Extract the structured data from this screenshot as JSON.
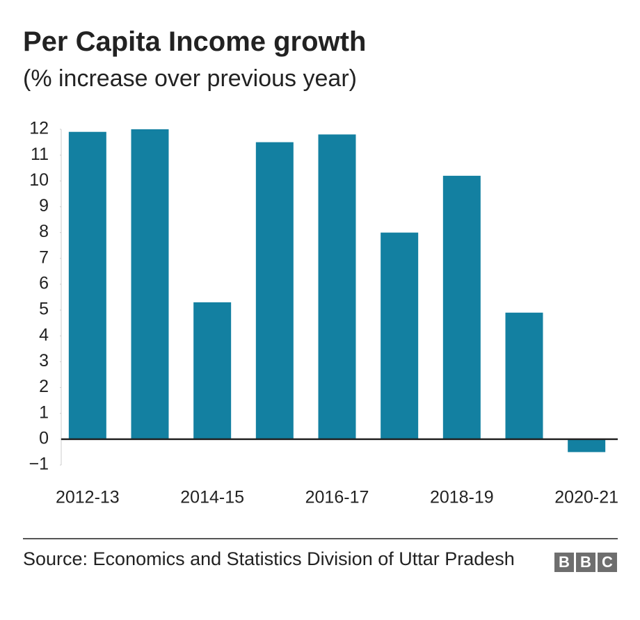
{
  "chart_data": {
    "type": "bar",
    "title": "Per Capita Income growth",
    "subtitle": "(% increase over previous year)",
    "categories": [
      "2012-13",
      null,
      "2014-15",
      null,
      "2016-17",
      null,
      "2018-19",
      null,
      "2020-21"
    ],
    "values": [
      11.9,
      12.0,
      5.3,
      11.5,
      11.8,
      8.0,
      10.2,
      4.9,
      -0.5
    ],
    "color": "#1380a1",
    "ylim": [
      -1,
      12
    ],
    "yticks": [
      {
        "value": -1,
        "label": "−1"
      },
      0,
      1,
      2,
      3,
      4,
      5,
      6,
      7,
      8,
      9,
      10,
      11,
      12
    ],
    "source": "Source: Economics and Statistics Division of Uttar Pradesh",
    "logo": [
      "B",
      "B",
      "C"
    ]
  }
}
